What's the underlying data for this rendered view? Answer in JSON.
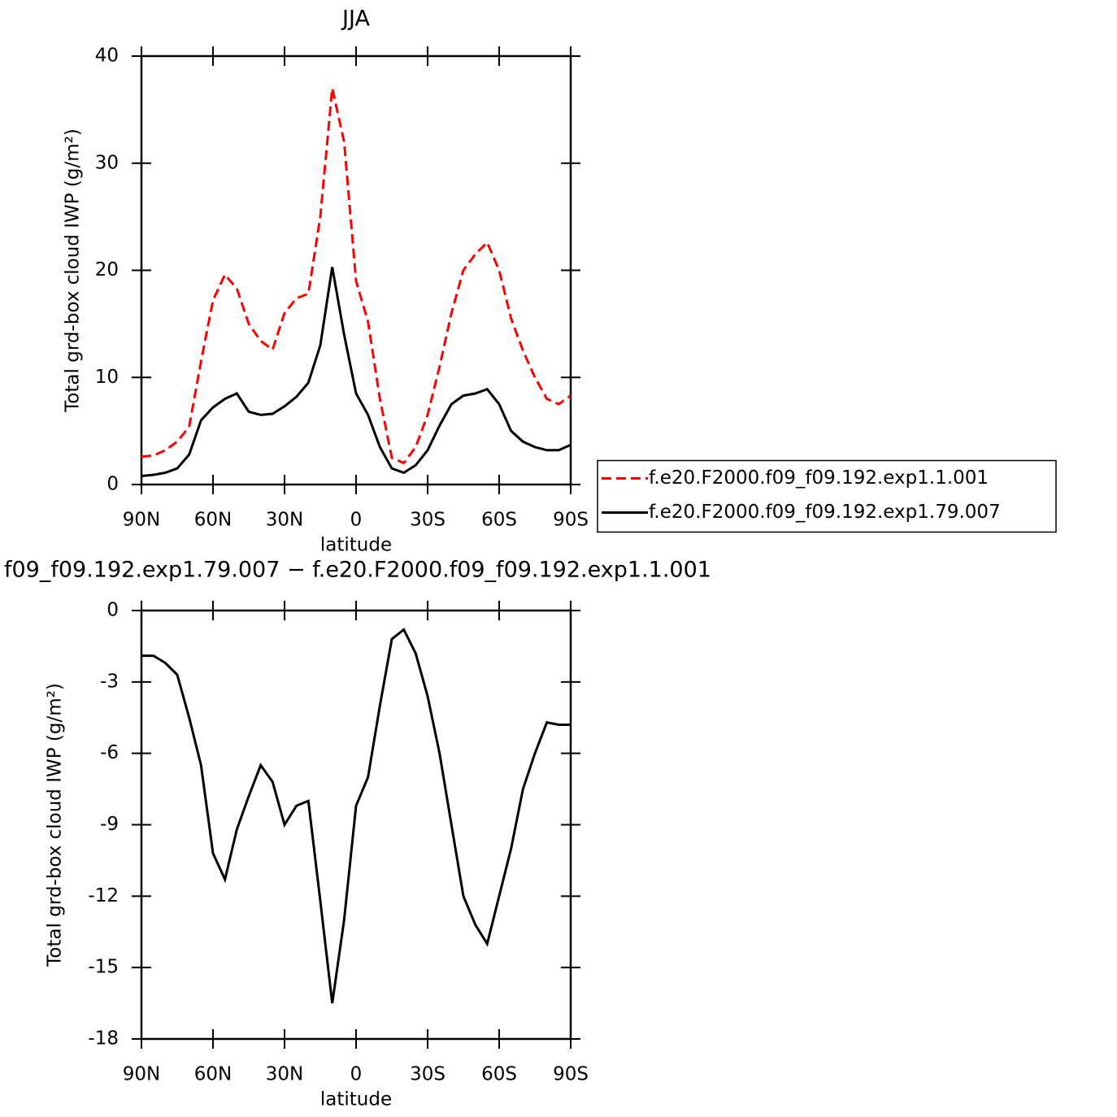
{
  "chart_data": [
    {
      "type": "line",
      "title": "JJA",
      "xlabel": "latitude",
      "ylabel": "Total grd-box cloud IWP (g/m²)",
      "x": [
        90,
        85,
        80,
        75,
        70,
        65,
        60,
        55,
        50,
        45,
        40,
        35,
        30,
        25,
        20,
        15,
        10,
        5,
        0,
        -5,
        -10,
        -15,
        -20,
        -25,
        -30,
        -35,
        -40,
        -45,
        -50,
        -55,
        -60,
        -65,
        -70,
        -75,
        -80,
        -85,
        -90
      ],
      "xlim": [
        90,
        -90
      ],
      "xticks": [
        {
          "value": 90,
          "label": "90N"
        },
        {
          "value": 60,
          "label": "60N"
        },
        {
          "value": 30,
          "label": "30N"
        },
        0,
        {
          "value": -30,
          "label": "30S"
        },
        {
          "value": -60,
          "label": "60S"
        },
        {
          "value": -90,
          "label": "90S"
        }
      ],
      "ylim": [
        0,
        40
      ],
      "yticks": [
        0,
        10,
        20,
        30,
        40
      ],
      "legend": "right",
      "series": [
        {
          "name": "f.e20.F2000.f09_f09.192.exp1.1.001",
          "color": "#ff0000",
          "dash": "dashed",
          "values": [
            2.6,
            2.7,
            3.2,
            4,
            5.4,
            11.5,
            17.2,
            19.6,
            18.3,
            15,
            13.4,
            12.6,
            16,
            17.4,
            17.8,
            25,
            37,
            32,
            19,
            15.2,
            8,
            2.5,
            2,
            3.5,
            6.5,
            11,
            16,
            20,
            21.5,
            22.6,
            20,
            15.5,
            12.5,
            10,
            8,
            7.5,
            8.3
          ]
        },
        {
          "name": "f.e20.F2000.f09_f09.192.exp1.79.007",
          "color": "#000000",
          "values": [
            0.8,
            0.9,
            1.1,
            1.5,
            2.8,
            6,
            7.2,
            8,
            8.5,
            6.8,
            6.5,
            6.6,
            7.3,
            8.2,
            9.5,
            13,
            20.3,
            14,
            8.5,
            6.5,
            3.5,
            1.5,
            1.1,
            1.8,
            3.2,
            5.5,
            7.5,
            8.3,
            8.5,
            8.9,
            7.5,
            5,
            4,
            3.5,
            3.2,
            3.2,
            3.7
          ]
        }
      ]
    },
    {
      "type": "line",
      "title": "f09_f09.192.exp1.79.007 − f.e20.F2000.f09_f09.192.exp1.1.001",
      "xlabel": "latitude",
      "ylabel": "Total grd-box cloud IWP (g/m²)",
      "x": [
        90,
        85,
        80,
        75,
        70,
        65,
        60,
        55,
        50,
        45,
        40,
        35,
        30,
        25,
        20,
        15,
        10,
        5,
        0,
        -5,
        -10,
        -15,
        -20,
        -25,
        -30,
        -35,
        -40,
        -45,
        -50,
        -55,
        -60,
        -65,
        -70,
        -75,
        -80,
        -85,
        -90
      ],
      "xlim": [
        90,
        -90
      ],
      "xticks": [
        {
          "value": 90,
          "label": "90N"
        },
        {
          "value": 60,
          "label": "60N"
        },
        {
          "value": 30,
          "label": "30N"
        },
        0,
        {
          "value": -30,
          "label": "30S"
        },
        {
          "value": -60,
          "label": "60S"
        },
        {
          "value": -90,
          "label": "90S"
        }
      ],
      "ylim": [
        -18,
        0
      ],
      "yticks": [
        0,
        -3,
        -6,
        -9,
        -12,
        -15,
        -18
      ],
      "series": [
        {
          "color": "#000000",
          "values": [
            -1.9,
            -1.9,
            -2.2,
            -2.7,
            -4.5,
            -6.5,
            -10.2,
            -11.3,
            -9.2,
            -7.8,
            -6.5,
            -7.2,
            -9,
            -8.2,
            -8,
            -12.2,
            -16.5,
            -13,
            -8.2,
            -7,
            -4,
            -1.2,
            -0.8,
            -1.8,
            -3.6,
            -6,
            -9,
            -12,
            -13.2,
            -14,
            -12,
            -10,
            -7.5,
            -6,
            -4.7,
            -4.8,
            -4.8
          ]
        }
      ]
    }
  ]
}
